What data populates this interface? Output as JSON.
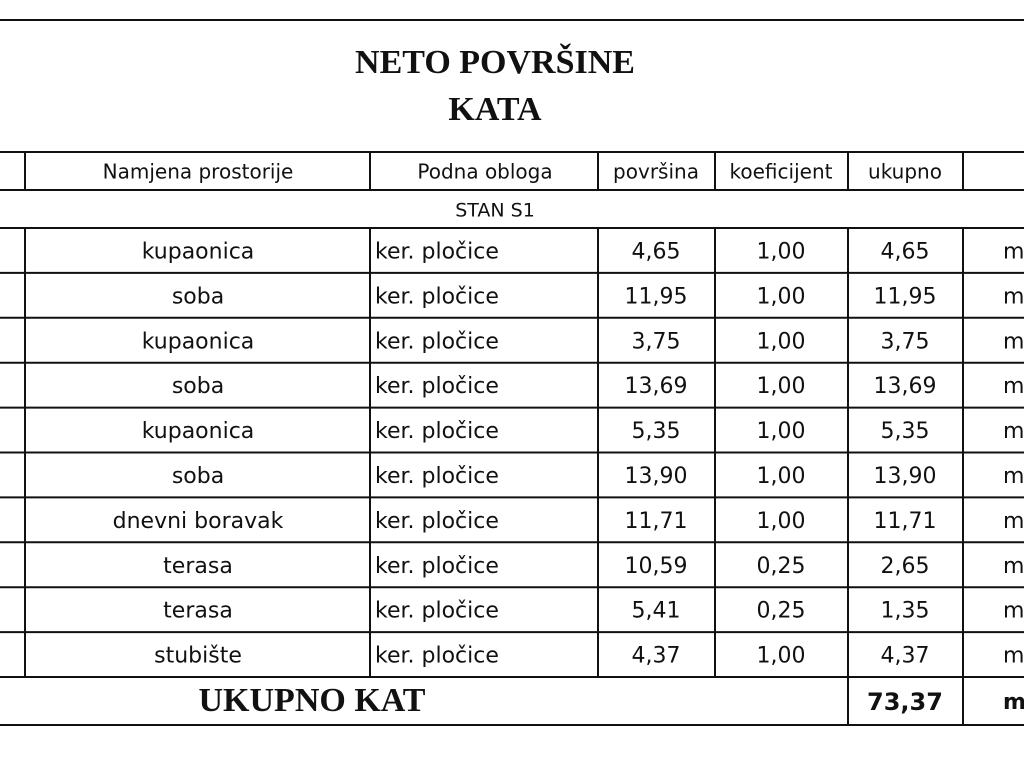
{
  "title": [
    "NETO POVRŠINE",
    "KATA"
  ],
  "table": {
    "header": [
      "Namjena prostorije",
      "Podna obloga",
      "površina",
      "koeficijent",
      "ukupno"
    ],
    "section": "STAN S1",
    "rows": [
      [
        "kupaonica",
        "ker. pločice",
        "4,65",
        "1,00",
        "4,65",
        "m"
      ],
      [
        "soba",
        "ker. pločice",
        "11,95",
        "1,00",
        "11,95",
        "m"
      ],
      [
        "kupaonica",
        "ker. pločice",
        "3,75",
        "1,00",
        "3,75",
        "m"
      ],
      [
        "soba",
        "ker. pločice",
        "13,69",
        "1,00",
        "13,69",
        "m"
      ],
      [
        "kupaonica",
        "ker. pločice",
        "5,35",
        "1,00",
        "5,35",
        "m"
      ],
      [
        "soba",
        "ker. pločice",
        "13,90",
        "1,00",
        "13,90",
        "m"
      ],
      [
        "dnevni boravak",
        "ker. pločice",
        "11,71",
        "1,00",
        "11,71",
        "m"
      ],
      [
        "terasa",
        "ker. pločice",
        "10,59",
        "0,25",
        "2,65",
        "m"
      ],
      [
        "terasa",
        "ker. pločice",
        "5,41",
        "0,25",
        "1,35",
        "m"
      ],
      [
        "stubište",
        "ker. pločice",
        "4,37",
        "1,00",
        "4,37",
        "m"
      ]
    ],
    "total": {
      "label": "UKUPNO KAT",
      "value": "73,37",
      "unit": "m"
    }
  }
}
